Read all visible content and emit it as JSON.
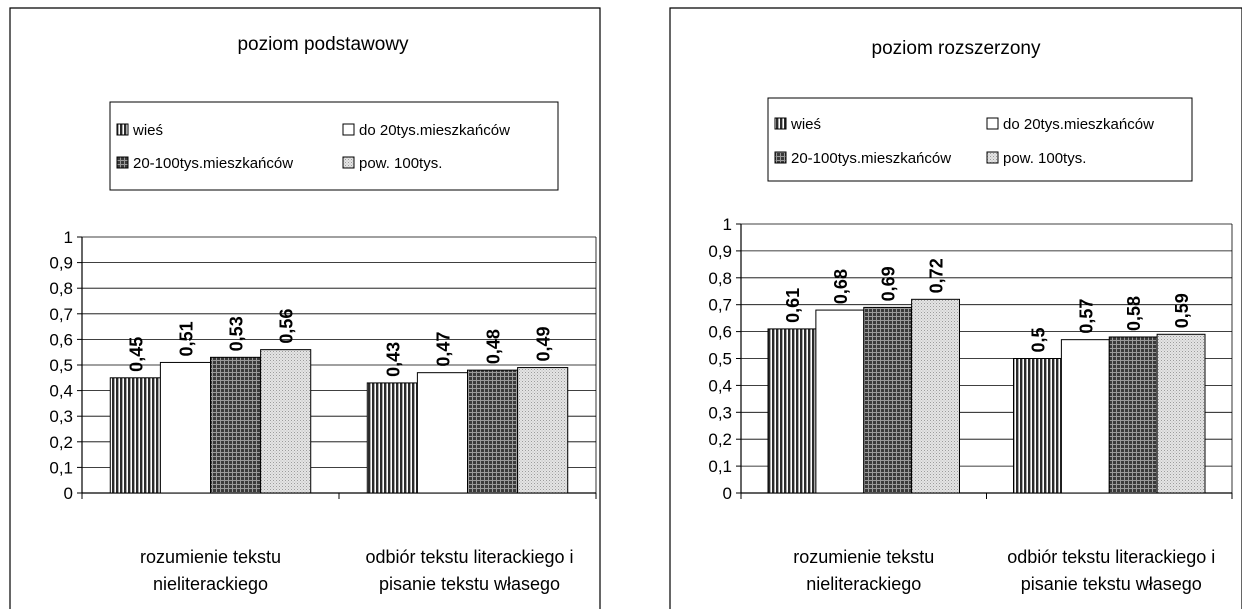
{
  "chart_data": [
    {
      "type": "bar",
      "title": "poziom podstawowy",
      "categories": [
        [
          "rozumienie tekstu",
          "nieliterackiego"
        ],
        [
          "odbiór tekstu literackiego i",
          "pisanie tekstu własego"
        ]
      ],
      "series": [
        {
          "name": "wieś",
          "values": [
            0.45,
            0.43
          ],
          "fill": "vstripe",
          "labels": [
            "0,45",
            "0,43"
          ]
        },
        {
          "name": "do 20tys.mieszkańców",
          "values": [
            0.51,
            0.47
          ],
          "fill": "white",
          "labels": [
            "0,51",
            "0,47"
          ]
        },
        {
          "name": "20-100tys.mieszkańców",
          "values": [
            0.53,
            0.48
          ],
          "fill": "grid",
          "labels": [
            "0,53",
            "0,48"
          ]
        },
        {
          "name": "pow. 100tys.",
          "values": [
            0.56,
            0.49
          ],
          "fill": "dots",
          "labels": [
            "0,56",
            "0,49"
          ]
        }
      ],
      "ylim": [
        0,
        1
      ],
      "yticks": [
        "0",
        "0,1",
        "0,2",
        "0,3",
        "0,4",
        "0,5",
        "0,6",
        "0,7",
        "0,8",
        "0,9",
        "1"
      ],
      "legend_rows": [
        {
          "left": "wieś",
          "right": "do 20tys.mieszkańców"
        },
        {
          "left": "20-100tys.mieszkańców",
          "right": "pow. 100tys."
        }
      ],
      "grid": true,
      "legend_position": "top"
    },
    {
      "type": "bar",
      "title": "poziom rozszerzony",
      "categories": [
        [
          "rozumienie tekstu",
          "nieliterackiego"
        ],
        [
          "odbiór tekstu literackiego i",
          "pisanie tekstu własego"
        ]
      ],
      "series": [
        {
          "name": "wieś",
          "values": [
            0.61,
            0.5
          ],
          "fill": "vstripe",
          "labels": [
            "0,61",
            "0,5"
          ]
        },
        {
          "name": "do 20tys.mieszkańców",
          "values": [
            0.68,
            0.57
          ],
          "fill": "white",
          "labels": [
            "0,68",
            "0,57"
          ]
        },
        {
          "name": "20-100tys.mieszkańców",
          "values": [
            0.69,
            0.58
          ],
          "fill": "grid",
          "labels": [
            "0,69",
            "0,58"
          ]
        },
        {
          "name": "pow. 100tys.",
          "values": [
            0.72,
            0.59
          ],
          "fill": "dots",
          "labels": [
            "0,72",
            "0,59"
          ]
        }
      ],
      "ylim": [
        0,
        1
      ],
      "yticks": [
        "0",
        "0,1",
        "0,2",
        "0,3",
        "0,4",
        "0,5",
        "0,6",
        "0,7",
        "0,8",
        "0,9",
        "1"
      ],
      "legend_rows": [
        {
          "left": "wieś",
          "right": "do 20tys.mieszkańców"
        },
        {
          "left": "20-100tys.mieszkańców",
          "right": "pow. 100tys."
        }
      ],
      "grid": true,
      "legend_position": "top"
    }
  ]
}
